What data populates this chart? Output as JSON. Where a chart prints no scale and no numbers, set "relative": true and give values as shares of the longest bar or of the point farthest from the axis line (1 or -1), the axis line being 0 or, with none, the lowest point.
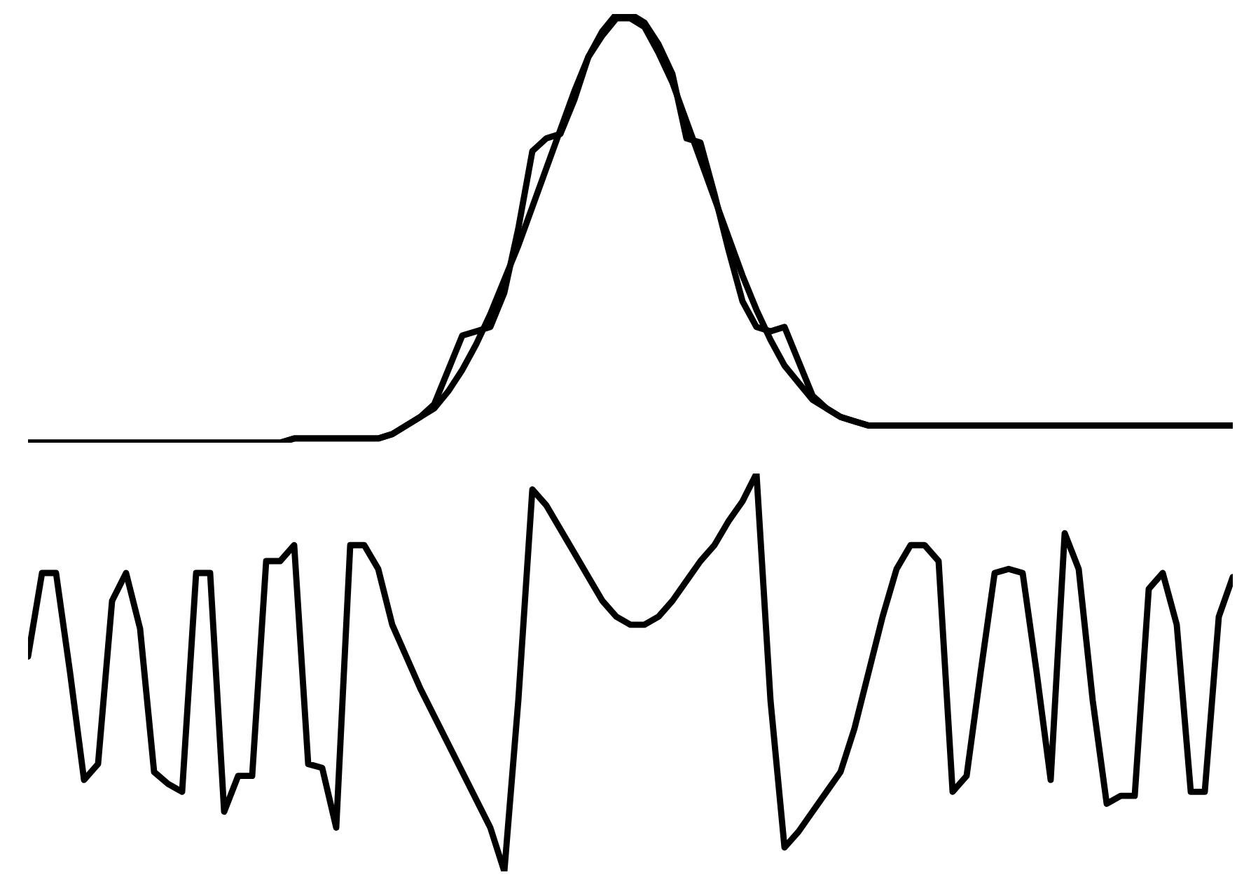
{
  "chart_data": [
    {
      "type": "line",
      "relative": true,
      "categories": [
        null,
        null,
        null,
        null,
        null,
        null,
        null,
        null,
        null,
        null,
        null,
        null,
        null,
        null,
        null,
        null,
        null,
        null,
        null,
        null,
        null,
        null,
        null,
        null,
        null,
        null,
        null,
        null,
        null,
        null,
        null,
        null,
        null,
        null,
        null,
        null,
        null,
        null,
        null,
        null,
        null,
        null,
        null,
        null,
        null,
        null,
        null,
        null,
        null,
        null,
        null,
        null,
        null,
        null,
        null,
        null,
        null,
        null,
        null,
        null,
        null,
        null,
        null,
        null,
        null,
        null,
        null,
        null,
        null,
        null,
        null,
        null,
        null,
        null,
        null,
        null,
        null,
        null,
        null,
        null,
        null,
        null,
        null,
        null,
        null,
        null,
        null
      ],
      "series": [
        {
          "color": "#000000",
          "values": [
            0,
            0,
            0,
            0,
            0,
            0,
            0,
            0,
            0,
            0,
            0,
            0,
            0,
            0,
            0,
            0,
            0,
            0,
            0,
            0.01,
            0.01,
            0.01,
            0.01,
            0.01,
            0.01,
            0.01,
            0.02,
            0.04,
            0.06,
            0.08,
            0.12,
            0.17,
            0.23,
            0.3,
            0.38,
            0.46,
            0.55,
            0.64,
            0.73,
            0.82,
            0.9,
            0.95,
            0.99,
            0.99,
            0.97,
            0.91,
            0.84,
            0.75,
            0.66,
            0.57,
            0.48,
            0.39,
            0.31,
            0.24,
            0.18,
            0.14,
            0.1,
            0.08,
            0.06,
            0.05,
            0.04,
            0.04,
            0.04,
            0.04,
            0.04,
            0.04,
            0.04,
            0.04,
            0.04,
            0.04,
            0.04,
            0.04,
            0.04,
            0.04,
            0.04,
            0.04,
            0.04,
            0.04,
            0.04,
            0.04,
            0.04,
            0.04,
            0.04,
            0.04,
            0.04,
            0.04,
            0.04
          ]
        },
        {
          "color": "#000000",
          "values": [
            0,
            0,
            0,
            0,
            0,
            0,
            0,
            0,
            0,
            0,
            0,
            0,
            0,
            0,
            0,
            0,
            0,
            0,
            0,
            0.01,
            0.01,
            0.01,
            0.01,
            0.01,
            0.01,
            0.01,
            0.02,
            0.04,
            0.06,
            0.09,
            0.17,
            0.25,
            0.26,
            0.27,
            0.35,
            0.5,
            0.68,
            0.71,
            0.72,
            0.8,
            0.9,
            0.96,
            1,
            1,
            0.98,
            0.93,
            0.86,
            0.71,
            0.7,
            0.58,
            0.45,
            0.33,
            0.27,
            0.26,
            0.27,
            0.19,
            0.11,
            0.08,
            0.06,
            0.05,
            0.04,
            0.04,
            0.04,
            0.04,
            0.04,
            0.04,
            0.04,
            0.04,
            0.04,
            0.04,
            0.04,
            0.04,
            0.04,
            0.04,
            0.04,
            0.04,
            0.04,
            0.04,
            0.04,
            0.04,
            0.04,
            0.04,
            0.04,
            0.04,
            0.04,
            0.04,
            0.04
          ]
        }
      ]
    },
    {
      "type": "line",
      "relative": true,
      "categories": [
        null,
        null,
        null,
        null,
        null,
        null,
        null,
        null,
        null,
        null,
        null,
        null,
        null,
        null,
        null,
        null,
        null,
        null,
        null,
        null,
        null,
        null,
        null,
        null,
        null,
        null,
        null,
        null,
        null,
        null,
        null,
        null,
        null,
        null,
        null,
        null,
        null,
        null,
        null,
        null,
        null,
        null,
        null,
        null,
        null,
        null,
        null,
        null,
        null,
        null,
        null,
        null,
        null,
        null,
        null,
        null,
        null,
        null,
        null,
        null,
        null,
        null,
        null,
        null,
        null,
        null,
        null,
        null,
        null,
        null,
        null,
        null,
        null,
        null,
        null,
        null,
        null,
        null,
        null,
        null,
        null,
        null,
        null,
        null,
        null,
        null,
        null
      ],
      "series": [
        {
          "color": "#000000",
          "values": [
            0.54,
            0.75,
            0.75,
            0.5,
            0.23,
            0.27,
            0.68,
            0.75,
            0.61,
            0.25,
            0.22,
            0.2,
            0.75,
            0.75,
            0.15,
            0.24,
            0.24,
            0.78,
            0.78,
            0.82,
            0.27,
            0.26,
            0.11,
            0.82,
            0.82,
            0.76,
            0.62,
            0.54,
            0.46,
            0.39,
            0.32,
            0.25,
            0.18,
            0.11,
            0,
            0.43,
            0.96,
            0.92,
            0.86,
            0.8,
            0.74,
            0.68,
            0.64,
            0.62,
            0.62,
            0.64,
            0.68,
            0.73,
            0.78,
            0.82,
            0.88,
            0.93,
            1,
            0.43,
            0.06,
            0.1,
            0.15,
            0.2,
            0.25,
            0.36,
            0.5,
            0.64,
            0.76,
            0.82,
            0.82,
            0.78,
            0.2,
            0.24,
            0.5,
            0.75,
            0.76,
            0.75,
            0.5,
            0.23,
            0.85,
            0.76,
            0.43,
            0.17,
            0.19,
            0.19,
            0.71,
            0.75,
            0.62,
            0.2,
            0.2,
            0.64,
            0.74
          ]
        }
      ]
    }
  ]
}
